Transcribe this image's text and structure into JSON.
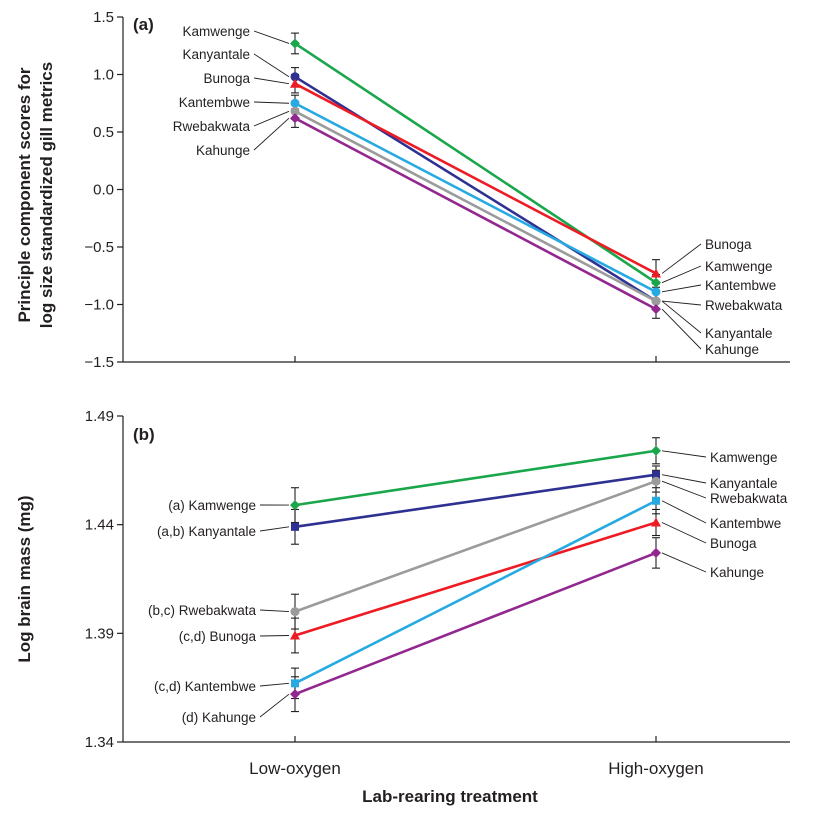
{
  "chart_data": [
    {
      "type": "line",
      "panel_label": "(a)",
      "ylabel": "Principle component scores for log size standardized gill metrics",
      "ylabel_lines": [
        "Principle component scores for",
        "log size standardized gill metrics"
      ],
      "categories": [
        "Low-oxygen",
        "High-oxygen"
      ],
      "ylim": [
        -1.5,
        1.5
      ],
      "yticks": [
        -1.5,
        -1.0,
        -0.5,
        0.0,
        0.5,
        1.0,
        1.5
      ],
      "ytick_labels": [
        "−1.5",
        "−1.0",
        "−0.5",
        "0.0",
        "0.5",
        "1.0",
        "1.5"
      ],
      "series": [
        {
          "name": "Kamwenge",
          "color": "#1aa64a",
          "marker": "diamond",
          "values": [
            1.27,
            -0.81
          ],
          "err": [
            0.09,
            0.07
          ]
        },
        {
          "name": "Kanyantale",
          "color": "#2e3192",
          "marker": "circle",
          "values": [
            0.98,
            -0.97
          ],
          "err": [
            0.08,
            0.07
          ]
        },
        {
          "name": "Bunoga",
          "color": "#ed1c24",
          "marker": "triangle",
          "values": [
            0.92,
            -0.73
          ],
          "err": [
            0.08,
            0.12
          ]
        },
        {
          "name": "Kantembwe",
          "color": "#27aae1",
          "marker": "circle",
          "values": [
            0.75,
            -0.89
          ],
          "err": [
            0.07,
            0.07
          ]
        },
        {
          "name": "Rwebakwata",
          "color": "#9b9b9b",
          "marker": "circle",
          "values": [
            0.68,
            -0.97
          ],
          "err": [
            0.07,
            0.07
          ]
        },
        {
          "name": "Kahunge",
          "color": "#92278f",
          "marker": "diamond",
          "values": [
            0.62,
            -1.04
          ],
          "err": [
            0.08,
            0.08
          ]
        }
      ],
      "left_labels": [
        "Kamwenge",
        "Kanyantale",
        "Bunoga",
        "Kantembwe",
        "Rwebakwata",
        "Kahunge"
      ],
      "right_labels": [
        "Bunoga",
        "Kamwenge",
        "Kantembwe",
        "Rwebakwata",
        "Kanyantale",
        "Kahunge"
      ]
    },
    {
      "type": "line",
      "panel_label": "(b)",
      "ylabel": "Log brain mass (mg)",
      "xlabel": "Lab-rearing treatment",
      "categories": [
        "Low-oxygen",
        "High-oxygen"
      ],
      "ylim": [
        1.34,
        1.49
      ],
      "yticks": [
        1.34,
        1.39,
        1.44,
        1.49
      ],
      "ytick_labels": [
        "1.34",
        "1.39",
        "1.44",
        "1.49"
      ],
      "series": [
        {
          "name": "Kamwenge",
          "color": "#1aa64a",
          "marker": "diamond",
          "values": [
            1.449,
            1.474
          ],
          "err": [
            0.008,
            0.006
          ]
        },
        {
          "name": "Kanyantale",
          "color": "#2e3192",
          "marker": "square",
          "values": [
            1.439,
            1.463
          ],
          "err": [
            0.008,
            0.004
          ]
        },
        {
          "name": "Rwebakwata",
          "color": "#9b9b9b",
          "marker": "circle",
          "values": [
            1.4,
            1.46
          ],
          "err": [
            0.008,
            0.005
          ]
        },
        {
          "name": "Bunoga",
          "color": "#ed1c24",
          "marker": "triangle",
          "values": [
            1.389,
            1.441
          ],
          "err": [
            0.008,
            0.006
          ]
        },
        {
          "name": "Kantembwe",
          "color": "#27aae1",
          "marker": "square",
          "values": [
            1.367,
            1.451
          ],
          "err": [
            0.007,
            0.006
          ]
        },
        {
          "name": "Kahunge",
          "color": "#92278f",
          "marker": "diamond",
          "values": [
            1.362,
            1.427
          ],
          "err": [
            0.008,
            0.007
          ]
        }
      ],
      "left_labels": [
        "(a) Kamwenge",
        "(a,b) Kanyantale",
        "(b,c) Rwebakwata",
        "(c,d) Bunoga",
        "(c,d) Kantembwe",
        "(d) Kahunge"
      ],
      "right_labels": [
        "Kamwenge",
        "Kanyantale",
        "Rwebakwata",
        "Kantembwe",
        "Bunoga",
        "Kahunge"
      ]
    }
  ]
}
